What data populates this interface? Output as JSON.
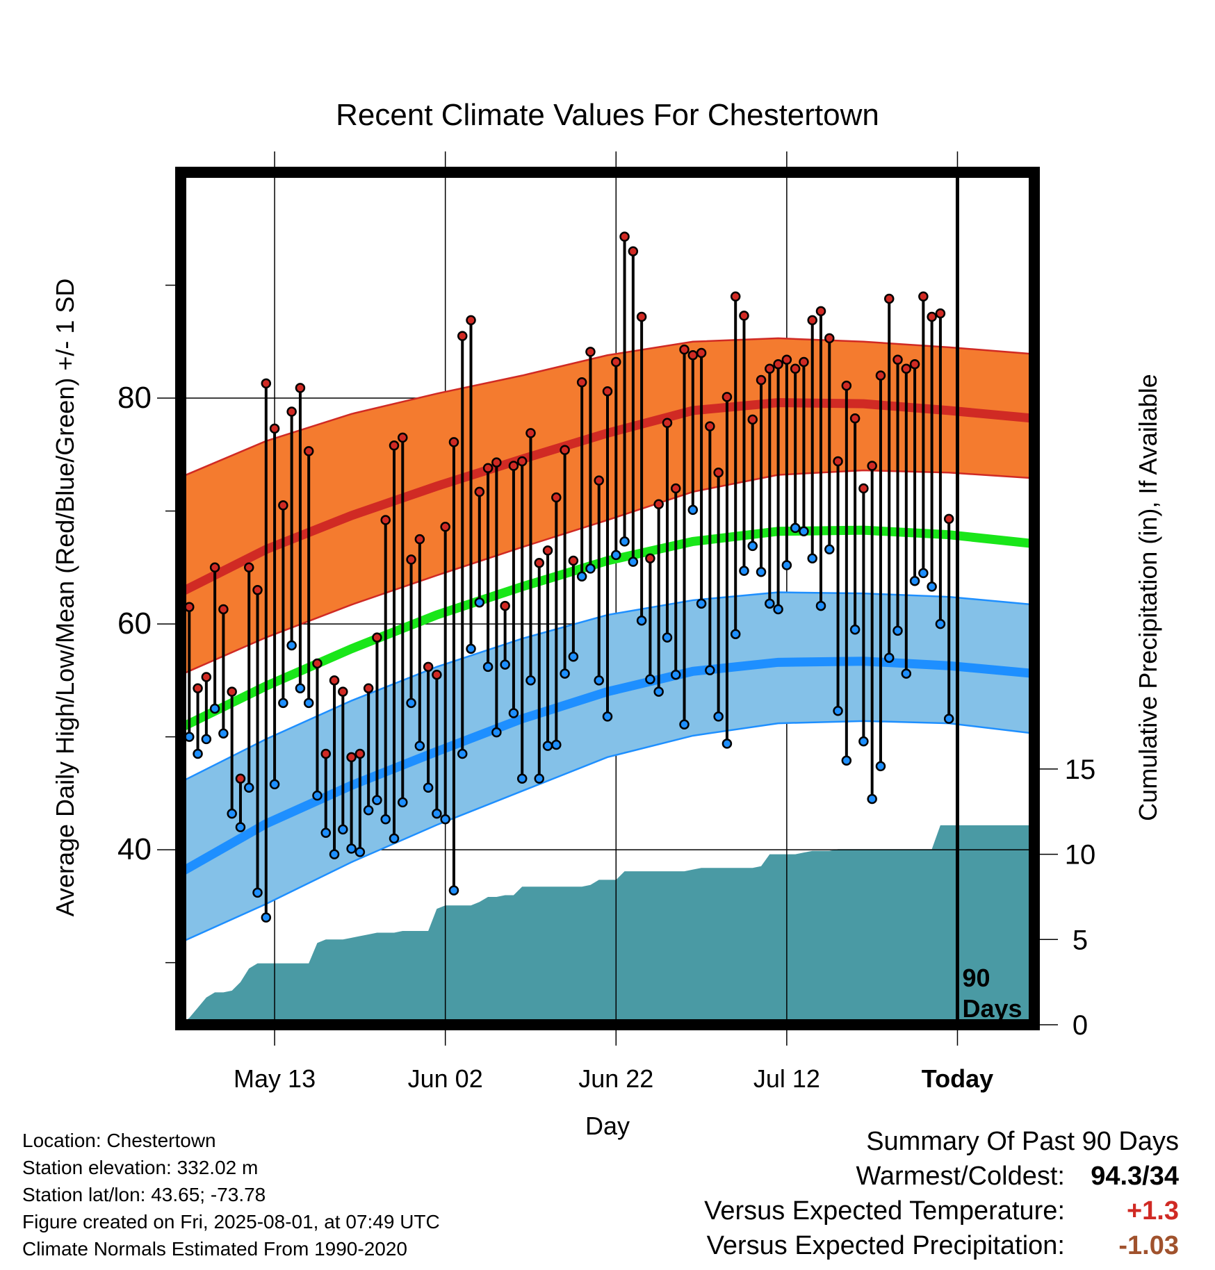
{
  "colors": {
    "high_band": "#f47b2f",
    "high_line": "#d02a24",
    "low_band": "#84c1e8",
    "low_line": "#1e8fff",
    "mean_line": "#19e619",
    "precip": "#4a9aa4",
    "warm_value": "#d02a24",
    "precip_value": "#a0522d"
  },
  "chart_data": {
    "type": "line",
    "title": "Recent Climate Values For Chestertown",
    "xlabel": "Day",
    "ylabel": "Average Daily High/Low/Mean (Red/Blue/Green) +/- 1 SD",
    "y2label": "Cumulative Precipitation (in), If Available",
    "xlim": [
      "2025-05-02",
      "2025-08-10"
    ],
    "ylim": [
      24.5,
      100
    ],
    "y_ticks": [
      40,
      60,
      80
    ],
    "y2lim": [
      0,
      50
    ],
    "y2_ticks": [
      0,
      5,
      10,
      15
    ],
    "x_ticks": [
      {
        "date": "2025-05-13",
        "label": "May 13"
      },
      {
        "date": "2025-06-02",
        "label": "Jun 02"
      },
      {
        "date": "2025-06-22",
        "label": "Jun 22"
      },
      {
        "date": "2025-07-12",
        "label": "Jul 12"
      },
      {
        "date": "2025-08-01",
        "label": "Today"
      }
    ],
    "today_marker": {
      "date": "2025-08-01",
      "label": "90 Days"
    },
    "normals": {
      "dates": [
        "2025-05-02",
        "2025-05-12",
        "2025-05-22",
        "2025-06-01",
        "2025-06-11",
        "2025-06-21",
        "2025-07-01",
        "2025-07-11",
        "2025-07-21",
        "2025-07-31",
        "2025-08-10"
      ],
      "high_mean": [
        62.8,
        66.6,
        69.6,
        72.2,
        74.6,
        76.9,
        78.9,
        79.6,
        79.5,
        78.9,
        78.2
      ],
      "high_plus_sd": [
        73.0,
        76.2,
        78.6,
        80.4,
        82.0,
        83.8,
        85.0,
        85.3,
        85.0,
        84.5,
        83.9
      ],
      "high_minus_sd": [
        55.5,
        58.8,
        61.7,
        64.3,
        66.8,
        69.2,
        71.7,
        73.2,
        73.6,
        73.4,
        72.9
      ],
      "mean": [
        50.8,
        54.5,
        57.8,
        60.8,
        63.3,
        65.6,
        67.3,
        68.2,
        68.3,
        67.9,
        67.1
      ],
      "low_mean": [
        38.0,
        42.3,
        45.7,
        48.7,
        51.6,
        54.0,
        55.8,
        56.6,
        56.7,
        56.3,
        55.6
      ],
      "low_plus_sd": [
        46.0,
        49.8,
        53.2,
        56.2,
        58.7,
        60.8,
        62.1,
        62.8,
        62.7,
        62.4,
        61.7
      ],
      "low_minus_sd": [
        31.8,
        35.2,
        38.9,
        42.2,
        45.2,
        48.2,
        50.1,
        51.2,
        51.4,
        51.2,
        50.3
      ]
    },
    "daily": {
      "start_date": "2025-05-03",
      "high": [
        61.5,
        54.3,
        55.3,
        65.0,
        61.3,
        54.0,
        46.3,
        65.0,
        63.0,
        81.3,
        77.3,
        70.5,
        78.8,
        80.9,
        75.3,
        56.5,
        48.5,
        55.0,
        54.0,
        48.2,
        48.5,
        54.3,
        58.8,
        69.2,
        75.8,
        76.5,
        65.7,
        67.5,
        56.2,
        55.5,
        68.6,
        76.1,
        85.5,
        86.9,
        71.7,
        73.8,
        74.3,
        61.6,
        74.0,
        74.4,
        76.9,
        65.4,
        66.5,
        71.2,
        75.4,
        65.6,
        81.4,
        84.1,
        72.7,
        80.6,
        83.2,
        94.3,
        93.0,
        87.2,
        65.8,
        70.6,
        77.8,
        72.0,
        84.3,
        83.8,
        84.0,
        77.5,
        73.4,
        80.1,
        89.0,
        87.3,
        78.1,
        81.6,
        82.6,
        83.0,
        83.4,
        82.6,
        83.2,
        86.9,
        87.7,
        85.3,
        74.4,
        81.1,
        78.2,
        72.0,
        74.0,
        82.0,
        88.8,
        83.4,
        82.6,
        83.0,
        89.0,
        87.2,
        87.5,
        69.3
      ],
      "low": [
        50.0,
        48.5,
        49.8,
        52.5,
        50.3,
        43.2,
        42.0,
        45.5,
        36.2,
        34.0,
        45.8,
        53.0,
        58.1,
        54.3,
        53.0,
        44.8,
        41.5,
        39.6,
        41.8,
        40.1,
        39.8,
        43.5,
        44.4,
        42.7,
        41.0,
        44.2,
        53.0,
        49.2,
        45.5,
        43.2,
        42.7,
        36.4,
        48.5,
        57.8,
        61.9,
        56.2,
        50.4,
        56.4,
        52.1,
        46.3,
        55.0,
        46.3,
        49.2,
        49.3,
        55.6,
        57.1,
        64.2,
        64.9,
        55.0,
        51.8,
        66.1,
        67.3,
        65.5,
        60.3,
        55.1,
        54.0,
        58.8,
        55.5,
        51.1,
        70.1,
        61.8,
        55.9,
        51.8,
        49.4,
        59.1,
        64.7,
        66.9,
        64.6,
        61.8,
        61.3,
        65.2,
        68.5,
        68.2,
        65.8,
        61.6,
        66.6,
        52.3,
        47.9,
        59.5,
        49.6,
        44.5,
        47.4,
        57.0,
        59.4,
        55.6,
        63.8,
        64.5,
        63.3,
        60.0,
        51.6
      ]
    },
    "precip": {
      "dates": [
        "2025-05-02",
        "2025-05-03",
        "2025-05-04",
        "2025-05-05",
        "2025-05-06",
        "2025-05-07",
        "2025-05-08",
        "2025-05-09",
        "2025-05-10",
        "2025-05-11",
        "2025-05-12",
        "2025-05-13",
        "2025-05-16",
        "2025-05-17",
        "2025-05-18",
        "2025-05-19",
        "2025-05-20",
        "2025-05-21",
        "2025-05-22",
        "2025-05-23",
        "2025-05-24",
        "2025-05-25",
        "2025-05-26",
        "2025-05-27",
        "2025-05-28",
        "2025-05-29",
        "2025-05-30",
        "2025-05-31",
        "2025-06-01",
        "2025-06-02",
        "2025-06-03",
        "2025-06-04",
        "2025-06-05",
        "2025-06-06",
        "2025-06-07",
        "2025-06-08",
        "2025-06-09",
        "2025-06-10",
        "2025-06-11",
        "2025-06-12",
        "2025-06-16",
        "2025-06-17",
        "2025-06-18",
        "2025-06-19",
        "2025-06-20",
        "2025-06-21",
        "2025-06-22",
        "2025-06-23",
        "2025-06-24",
        "2025-06-25",
        "2025-06-27",
        "2025-06-30",
        "2025-07-01",
        "2025-07-02",
        "2025-07-03",
        "2025-07-04",
        "2025-07-08",
        "2025-07-09",
        "2025-07-10",
        "2025-07-11",
        "2025-07-12",
        "2025-07-13",
        "2025-07-14",
        "2025-07-15",
        "2025-07-16",
        "2025-07-17",
        "2025-07-18",
        "2025-07-19",
        "2025-07-20",
        "2025-07-21",
        "2025-07-22",
        "2025-07-23",
        "2025-07-24",
        "2025-07-25",
        "2025-07-26",
        "2025-07-27",
        "2025-07-28",
        "2025-07-29",
        "2025-07-30",
        "2025-07-31",
        "2025-08-01",
        "2025-08-10"
      ],
      "values": [
        0.0,
        0.4,
        1.0,
        1.6,
        1.9,
        1.9,
        2.0,
        2.5,
        3.3,
        3.6,
        3.6,
        3.6,
        3.6,
        3.6,
        4.8,
        5.0,
        5.0,
        5.0,
        5.1,
        5.2,
        5.3,
        5.4,
        5.4,
        5.4,
        5.5,
        5.5,
        5.5,
        5.5,
        6.8,
        7.0,
        7.0,
        7.0,
        7.0,
        7.2,
        7.5,
        7.5,
        7.6,
        7.6,
        8.1,
        8.1,
        8.1,
        8.1,
        8.1,
        8.2,
        8.5,
        8.5,
        8.5,
        9.0,
        9.0,
        9.0,
        9.0,
        9.0,
        9.1,
        9.2,
        9.2,
        9.2,
        9.2,
        9.3,
        10.0,
        10.0,
        10.0,
        10.0,
        10.1,
        10.2,
        10.2,
        10.2,
        10.3,
        10.3,
        10.3,
        10.3,
        10.3,
        10.3,
        10.3,
        10.3,
        10.3,
        10.3,
        10.3,
        10.3,
        11.7,
        11.7,
        11.7,
        11.7
      ]
    }
  },
  "location_info": {
    "location": "Location: Chestertown",
    "elevation": "Station elevation: 332.02 m",
    "latlon": "Station lat/lon: 43.65; -73.78",
    "created": "Figure created on Fri, 2025-08-01, at 07:49 UTC",
    "normals_period": "Climate Normals Estimated From 1990-2020"
  },
  "summary": {
    "title": "Summary Of Past 90 Days",
    "warmest_label": "Warmest/Coldest:",
    "warmest_value": "94.3/34",
    "temp_label": "Versus Expected Temperature:",
    "temp_value": "+1.3",
    "precip_label": "Versus Expected Precipitation:",
    "precip_value": "-1.03"
  }
}
